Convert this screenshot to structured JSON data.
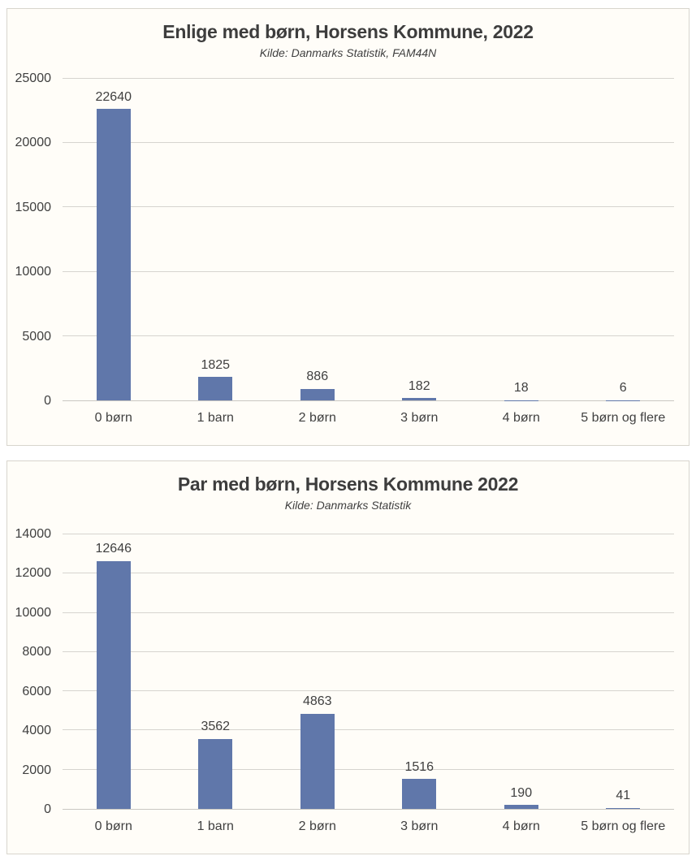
{
  "chart_data": [
    {
      "type": "bar",
      "title": "Enlige med børn, Horsens Kommune, 2022",
      "subtitle": "Kilde: Danmarks Statistik, FAM44N",
      "categories": [
        "0 børn",
        "1 barn",
        "2 børn",
        "3 børn",
        "4 børn",
        "5 børn og flere"
      ],
      "values": [
        22640,
        1825,
        886,
        182,
        18,
        6
      ],
      "xlabel": "",
      "ylabel": "",
      "ylim": [
        0,
        25000
      ],
      "yticks": [
        0,
        5000,
        10000,
        15000,
        20000,
        25000
      ],
      "grid": true,
      "legend_position": "none",
      "data_labels": true,
      "bar_color": "#6077aa"
    },
    {
      "type": "bar",
      "title": "Par med børn, Horsens Kommune 2022",
      "subtitle": "Kilde: Danmarks Statistik",
      "categories": [
        "0 børn",
        "1 barn",
        "2 børn",
        "3 børn",
        "4 børn",
        "5 børn og flere"
      ],
      "values": [
        12646,
        3562,
        4863,
        1516,
        190,
        41
      ],
      "xlabel": "",
      "ylabel": "",
      "ylim": [
        0,
        14000
      ],
      "yticks": [
        0,
        2000,
        4000,
        6000,
        8000,
        10000,
        12000,
        14000
      ],
      "grid": true,
      "legend_position": "none",
      "data_labels": true,
      "bar_color": "#6077aa"
    }
  ]
}
